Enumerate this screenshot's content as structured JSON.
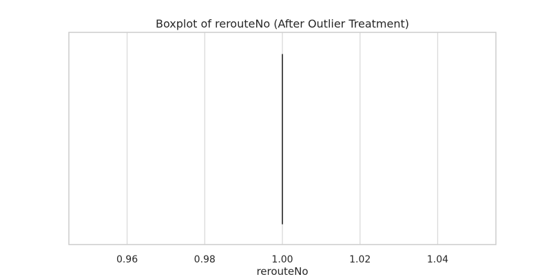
{
  "chart_data": {
    "type": "boxplot",
    "title": "Boxplot of rerouteNo (After Outlier Treatment)",
    "xlabel": "rerouteNo",
    "ylabel": "",
    "orientation": "horizontal",
    "xlim": [
      0.945,
      1.055
    ],
    "xticks": [
      0.96,
      0.98,
      1.0,
      1.02,
      1.04
    ],
    "xtick_labels": [
      "0.96",
      "0.98",
      "1.00",
      "1.02",
      "1.04"
    ],
    "grid": true,
    "series": [
      {
        "min": 1.0,
        "q1": 1.0,
        "median": 1.0,
        "q3": 1.0,
        "max": 1.0,
        "outliers": []
      }
    ],
    "colors": {
      "box": "#4c4c4c",
      "grid": "#d9d9d9",
      "frame": "#cccccc",
      "text": "#262626"
    }
  }
}
